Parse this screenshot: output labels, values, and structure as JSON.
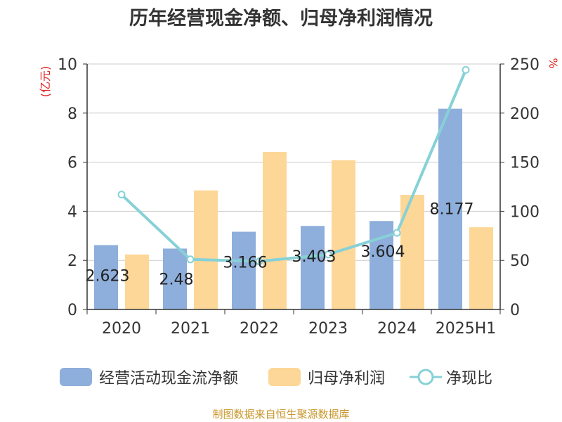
{
  "title": "历年经营现金净额、归母净利润情况",
  "source": "制图数据来自恒生聚源数据库",
  "chart_data": {
    "type": "bar",
    "categories": [
      "2020",
      "2021",
      "2022",
      "2023",
      "2024",
      "2025H1"
    ],
    "left_axis": {
      "unit_label": "(亿元)",
      "range": [
        0,
        10
      ],
      "ticks": [
        "0",
        "2",
        "4",
        "6",
        "8",
        "10"
      ]
    },
    "right_axis": {
      "unit_label": "%",
      "range": [
        0,
        250
      ],
      "ticks": [
        "0",
        "50",
        "100",
        "150",
        "200",
        "250"
      ]
    },
    "grid": true,
    "legend_position": "bottom",
    "series": [
      {
        "name": "经营活动现金流净额",
        "type": "bar",
        "axis": "left",
        "color": "#8eaedb",
        "values": [
          2.623,
          2.48,
          3.166,
          3.403,
          3.604,
          8.177
        ],
        "labels": [
          "2.623",
          "2.48",
          "3.166",
          "3.403",
          "3.604",
          "8.177"
        ]
      },
      {
        "name": "归母净利润",
        "type": "bar",
        "axis": "left",
        "color": "#fdd797",
        "values": [
          2.24,
          4.85,
          6.42,
          6.08,
          4.67,
          3.35
        ]
      },
      {
        "name": "净现比",
        "type": "line",
        "axis": "right",
        "color": "#86d1d7",
        "values": [
          117,
          51,
          49,
          56,
          78,
          244
        ]
      }
    ]
  }
}
